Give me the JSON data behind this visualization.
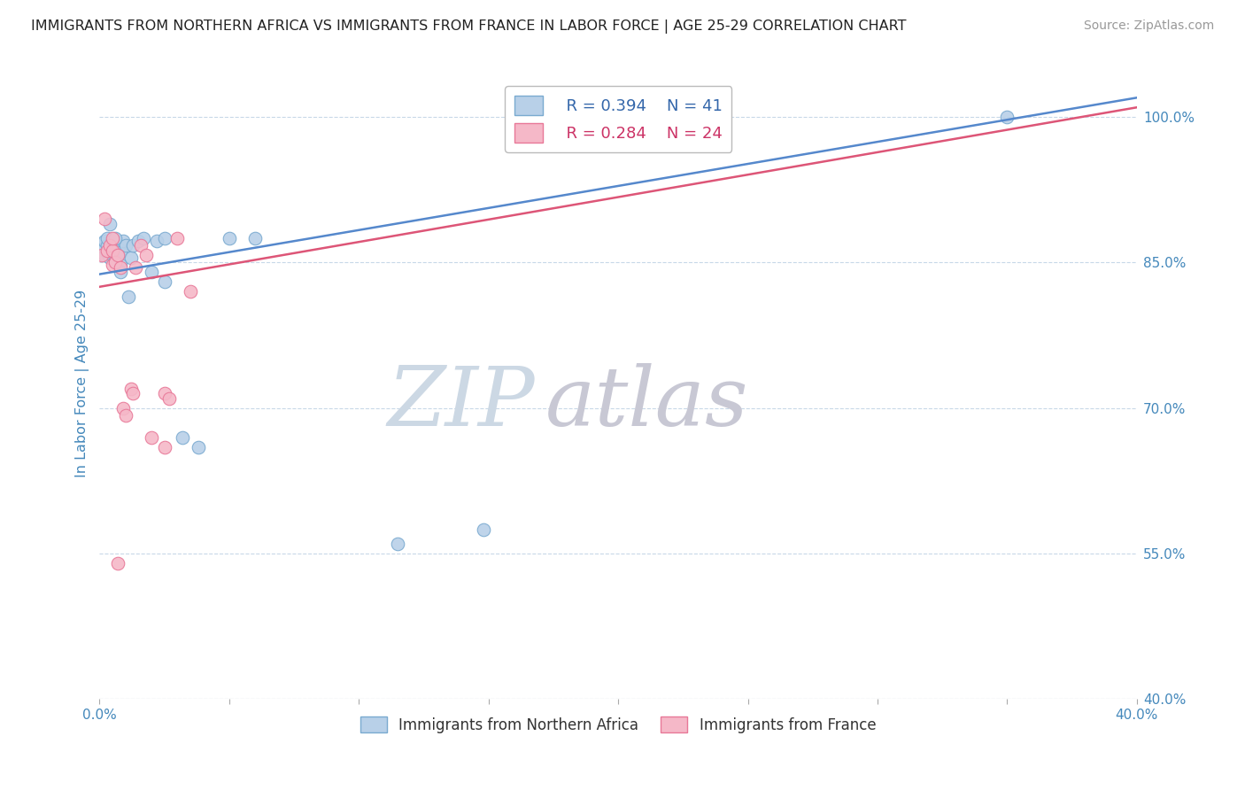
{
  "title": "IMMIGRANTS FROM NORTHERN AFRICA VS IMMIGRANTS FROM FRANCE IN LABOR FORCE | AGE 25-29 CORRELATION CHART",
  "source": "Source: ZipAtlas.com",
  "ylabel": "In Labor Force | Age 25-29",
  "r_blue": 0.394,
  "n_blue": 41,
  "r_pink": 0.284,
  "n_pink": 24,
  "color_blue": "#b8d0e8",
  "color_pink": "#f5b8c8",
  "color_blue_edge": "#7aaad0",
  "color_pink_edge": "#e87898",
  "color_blue_line": "#5588cc",
  "color_pink_line": "#dd5577",
  "color_blue_text": "#3366aa",
  "color_pink_text": "#cc3366",
  "color_raxis": "#4488bb",
  "watermark_zip_color": "#c8d8e8",
  "watermark_atlas_color": "#c8c8d8",
  "blue_x": [
    0.001,
    0.001,
    0.002,
    0.002,
    0.002,
    0.003,
    0.003,
    0.003,
    0.004,
    0.004,
    0.005,
    0.005,
    0.005,
    0.006,
    0.006,
    0.006,
    0.007,
    0.007,
    0.008,
    0.008,
    0.009,
    0.01,
    0.011,
    0.012,
    0.013,
    0.015,
    0.017,
    0.02,
    0.022,
    0.025,
    0.032,
    0.038,
    0.05,
    0.06,
    0.115,
    0.148,
    0.35,
    0.004,
    0.006,
    0.008,
    0.025
  ],
  "blue_y": [
    0.862,
    0.87,
    0.858,
    0.865,
    0.872,
    0.86,
    0.868,
    0.875,
    0.855,
    0.862,
    0.858,
    0.865,
    0.872,
    0.852,
    0.86,
    0.87,
    0.858,
    0.865,
    0.848,
    0.86,
    0.872,
    0.868,
    0.815,
    0.855,
    0.868,
    0.872,
    0.875,
    0.84,
    0.872,
    0.875,
    0.67,
    0.66,
    0.875,
    0.875,
    0.56,
    0.575,
    1.0,
    0.89,
    0.875,
    0.84,
    0.83
  ],
  "pink_x": [
    0.001,
    0.002,
    0.003,
    0.004,
    0.005,
    0.005,
    0.006,
    0.007,
    0.008,
    0.009,
    0.01,
    0.012,
    0.013,
    0.014,
    0.016,
    0.018,
    0.02,
    0.025,
    0.03,
    0.035,
    0.025,
    0.027,
    0.005,
    0.007
  ],
  "pink_y": [
    0.858,
    0.895,
    0.862,
    0.868,
    0.848,
    0.862,
    0.85,
    0.858,
    0.845,
    0.7,
    0.692,
    0.72,
    0.715,
    0.845,
    0.868,
    0.858,
    0.67,
    0.66,
    0.875,
    0.82,
    0.715,
    0.71,
    0.875,
    0.54
  ],
  "xmin": 0.0,
  "xmax": 0.4,
  "ymin": 0.4,
  "ymax": 1.05,
  "yticks": [
    0.4,
    0.55,
    0.7,
    0.85,
    1.0
  ],
  "xticks_bottom_left": "0.0%",
  "xticks_bottom_right": "40.0%",
  "xticks": [
    0.0,
    0.05,
    0.1,
    0.15,
    0.2,
    0.25,
    0.3,
    0.35,
    0.4
  ]
}
